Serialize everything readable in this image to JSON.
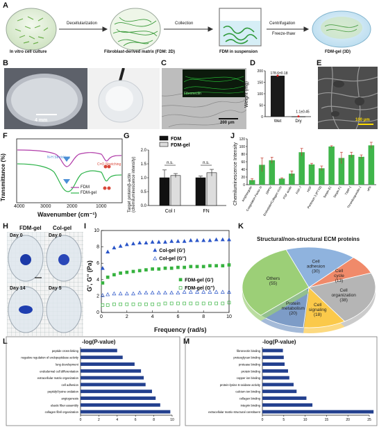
{
  "panels": [
    "A",
    "B",
    "C",
    "D",
    "E",
    "F",
    "G",
    "H",
    "I",
    "J",
    "K",
    "L",
    "M"
  ],
  "a": {
    "steps": [
      "In vitro cell culture",
      "Fibroblast-derived matrix (FDM: 2D)",
      "FDM in suspension",
      "FDM-gel (3D)"
    ],
    "arrows": [
      "Decellularization",
      "Collection",
      "Centrifugation",
      "Freeze-thaw"
    ]
  },
  "b": {
    "scale": "4 mm"
  },
  "c": {
    "inset": "Fibronectin",
    "scale": "200 μm"
  },
  "d": {
    "ylabel": "Weight (mg)",
    "labels": [
      "178.6±0.18",
      "1.1±0.45"
    ],
    "chart_data": {
      "type": "bar",
      "categories": [
        "Wet",
        "Dry"
      ],
      "values": [
        178.6,
        1.1
      ],
      "ylim": [
        0,
        200
      ],
      "yticks": [
        0,
        50,
        100,
        150,
        200
      ],
      "ylabel": "Weight (mg)"
    }
  },
  "e": {
    "scale": "100 μm"
  },
  "f": {
    "ylabel": "Transmittance (%)",
    "xlabel": "Wavenumber (cm⁻¹)",
    "ann1": "N-H Stretching",
    "ann2": "C=O Stretching",
    "chart_data": {
      "type": "line",
      "xticks": [
        4000,
        3000,
        2000,
        1000
      ],
      "xlim": [
        4000,
        800
      ],
      "series": [
        {
          "name": "FDM",
          "color": "#b03aa8"
        },
        {
          "name": "FDM-gel",
          "color": "#2db34a"
        }
      ]
    }
  },
  "g": {
    "ylabel": "Target protein/β-actin (chemiluminescence intensity)",
    "ns": "n.s.",
    "chart_data": {
      "type": "bar",
      "categories": [
        "Col I",
        "FN"
      ],
      "series": [
        {
          "name": "FDM",
          "values": [
            1.0,
            1.0
          ]
        },
        {
          "name": "FDM-gel",
          "values": [
            1.08,
            1.18
          ]
        }
      ],
      "ylim": [
        0,
        2.0
      ],
      "yticks": [
        0.0,
        0.5,
        1.0,
        1.5,
        2.0
      ]
    }
  },
  "h": {
    "col1": "FDM-gel",
    "col2": "Col-gel",
    "d0": "Day 0",
    "d14": "Day 14",
    "d5": "Day 5"
  },
  "i": {
    "ylabel": "G', G'' (Pa)",
    "xlabel": "Frequency (rad/s)",
    "chart_data": {
      "type": "scatter",
      "xlim": [
        0,
        10
      ],
      "ylim": [
        0,
        10
      ],
      "xticks": [
        0,
        2,
        4,
        6,
        8,
        10
      ],
      "yticks": [
        0,
        2,
        4,
        6,
        8,
        10
      ],
      "series": [
        {
          "name": "Col-gel (G')",
          "x": [
            0.1,
            0.5,
            1,
            1.5,
            2,
            2.5,
            3,
            3.5,
            4,
            4.5,
            5,
            5.5,
            6,
            6.5,
            7,
            7.5,
            8,
            8.5,
            9,
            9.5,
            10
          ],
          "y": [
            5.4,
            7.4,
            7.9,
            8.1,
            8.3,
            8.4,
            8.5,
            8.5,
            8.6,
            8.6,
            8.6,
            8.7,
            8.7,
            8.7,
            8.8,
            8.8,
            8.8,
            8.8,
            8.9,
            8.9,
            8.9
          ]
        },
        {
          "name": "Col-gel (G'')",
          "x": [
            0.1,
            0.5,
            1,
            1.5,
            2,
            2.5,
            3,
            3.5,
            4,
            4.5,
            5,
            5.5,
            6,
            6.5,
            7,
            7.5,
            8,
            8.5,
            9,
            9.5,
            10
          ],
          "y": [
            2.1,
            2.2,
            2.3,
            2.3,
            2.3,
            2.3,
            2.4,
            2.4,
            2.4,
            2.4,
            2.4,
            2.4,
            2.4,
            2.5,
            2.5,
            2.5,
            2.5,
            2.5,
            2.5,
            2.5,
            2.5
          ]
        },
        {
          "name": "FDM-gel (G')",
          "x": [
            0.1,
            0.5,
            1,
            1.5,
            2,
            2.5,
            3,
            3.5,
            4,
            4.5,
            5,
            5.5,
            6,
            6.5,
            7,
            7.5,
            8,
            8.5,
            9,
            9.5,
            10
          ],
          "y": [
            3.6,
            4.3,
            4.6,
            4.8,
            4.9,
            5.0,
            5.1,
            5.2,
            5.3,
            5.3,
            5.4,
            5.4,
            5.5,
            5.5,
            5.6,
            5.6,
            5.6,
            5.7,
            5.7,
            5.7,
            5.8
          ]
        },
        {
          "name": "FDM-gel (G'')",
          "x": [
            0.1,
            0.5,
            1,
            1.5,
            2,
            2.5,
            3,
            3.5,
            4,
            4.5,
            5,
            5.5,
            6,
            6.5,
            7,
            7.5,
            8,
            8.5,
            9,
            9.5,
            10
          ],
          "y": [
            0.9,
            0.9,
            1.0,
            1.0,
            1.0,
            1.0,
            1.0,
            1.0,
            1.0,
            1.0,
            1.1,
            1.1,
            1.1,
            1.1,
            1.1,
            1.1,
            1.1,
            1.1,
            1.1,
            1.1,
            1.2
          ]
        }
      ]
    }
  },
  "j": {
    "ylabel": "Chemiluminescence Intensity",
    "chart_data": {
      "type": "bar",
      "ylim": [
        0,
        120
      ],
      "yticks": [
        0,
        20,
        40,
        60,
        80,
        100,
        120
      ],
      "categories": [
        "Amphiregulin",
        "Coagulation Factor III",
        "DPPIV",
        "Endostatin/Collagen XVIII",
        "FGF acidic",
        "FGF-7",
        "HGF",
        "Pentraxin 3 (PTX3)",
        "Serpin E1",
        "Serpin F1",
        "TIMP-1",
        "Thrombospondin-1",
        "uPA"
      ],
      "values": [
        12,
        52,
        64,
        16,
        29,
        85,
        53,
        43,
        100,
        70,
        78,
        73,
        103
      ],
      "errors": [
        4,
        18,
        8,
        2,
        7,
        10,
        3,
        6,
        2,
        15,
        7,
        5,
        8
      ]
    }
  },
  "k": {
    "title": "Structural/non-structural ECM proteins",
    "chart_data": {
      "type": "pie",
      "categories": [
        "Cell adhesion",
        "Cell cycle",
        "Cell organization",
        "Cell signaling",
        "Protein metabolism",
        "Others"
      ],
      "values": [
        30,
        13,
        38,
        18,
        20,
        55
      ],
      "counts": [
        "(30)",
        "(13)",
        "(38)",
        "(18)",
        "(20)",
        "(55)"
      ],
      "colors": [
        "#8fb3de",
        "#f08a6a",
        "#b5b5b5",
        "#fbc94a",
        "#7d9cc7",
        "#9ccf77"
      ]
    }
  },
  "l": {
    "title": "-log(P-value)",
    "chart_data": {
      "type": "bar",
      "xlim": [
        0,
        10
      ],
      "xticks": [
        0,
        2,
        4,
        6,
        8,
        10
      ],
      "categories": [
        "peptide cross-linking",
        "negative regulation of endopeptidase activity",
        "lung development",
        "endodermal cell differentiation",
        "extracellular matrix organization",
        "cell adhesion",
        "peptidyl-lysine oxidation",
        "angiogenesis",
        "elastic fiber assembly",
        "collagen fibril organization"
      ],
      "values": [
        4.0,
        4.6,
        5.9,
        6.6,
        6.9,
        7.1,
        7.8,
        8.2,
        8.7,
        9.8
      ]
    }
  },
  "m": {
    "title": "-log(P-value)",
    "chart_data": {
      "type": "bar",
      "xlim": [
        0,
        25
      ],
      "xticks": [
        0,
        5,
        10,
        15,
        20,
        25
      ],
      "categories": [
        "fibronectin binding",
        "proteoglycan binding",
        "protease binding",
        "protein binding",
        "copper ion binding",
        "protein-lysine 6-oxidase activity",
        "calcium ion binding",
        "collagen binding",
        "integrin binding",
        "extracellular matrix structural constituent"
      ],
      "values": [
        4.8,
        5.0,
        5.2,
        6.0,
        6.3,
        7.3,
        8.0,
        10.3,
        11.7,
        26.0
      ]
    }
  }
}
